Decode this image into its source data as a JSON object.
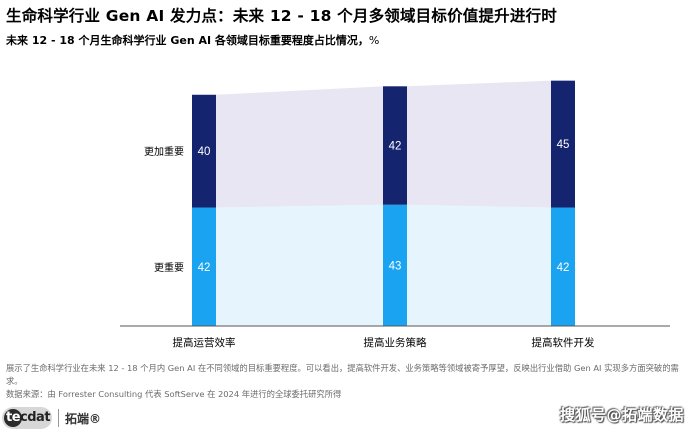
{
  "header": {
    "title": "生命科学行业 Gen AI 发力点：未来 12 - 18 个月多领域目标价值提升进行时",
    "subtitle": "未来 12 - 18 个月生命科学行业 Gen AI 各领域目标重要程度占比情况，",
    "unit": "%"
  },
  "chart_data": {
    "type": "bar",
    "stacked": true,
    "categories": [
      "提高运营效率",
      "提高业务策略",
      "提高软件开发"
    ],
    "series": [
      {
        "name": "更重要",
        "values": [
          42,
          43,
          42
        ]
      },
      {
        "name": "更加重要",
        "values": [
          40,
          42,
          45
        ]
      }
    ],
    "row_labels": [
      "更加重要",
      "更重要"
    ],
    "colors": {
      "bottom": "#1aa3f0",
      "top": "#15246e",
      "band_bottom": "#e6f4fd",
      "band_top": "#e7e6f2"
    },
    "legend": "none",
    "grid": false
  },
  "footer": {
    "note": "展示了生命科学行业在未来 12 - 18 个月内 Gen AI 在不同领域的目标重要程度。可以看出，提高软件开发、业务策略等领域被寄予厚望，反映出行业借助 Gen AI 实现多方面突破的需求。",
    "source": "数据来源：由 Forrester Consulting 代表 SoftServe 在 2024 年进行的全球委托研究所得"
  },
  "brand": {
    "logo": "tecdat",
    "name": "拓端®"
  },
  "watermark": "搜狐号@拓端数据"
}
